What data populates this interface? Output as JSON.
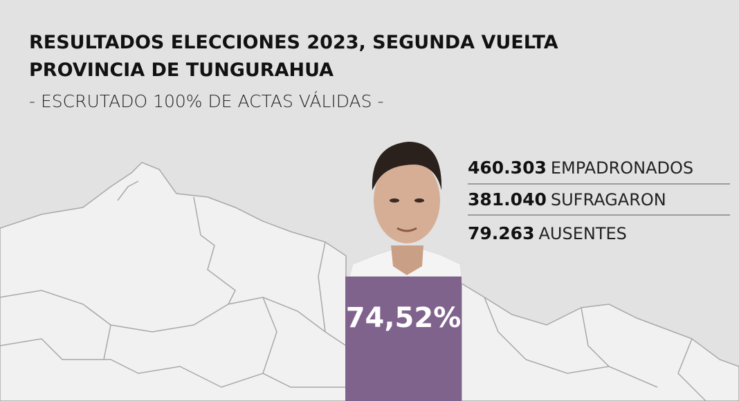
{
  "header": {
    "title_lines": [
      "RESULTADOS ELECCIONES 2023, SEGUNDA VUELTA",
      "PROVINCIA DE TUNGURAHUA"
    ],
    "subtitle": "- ESCRUTADO 100% DE ACTAS VÁLIDAS -"
  },
  "stats": [
    {
      "number": "460.303",
      "label": "EMPADRONADOS"
    },
    {
      "number": "381.040",
      "label": "SUFRAGARON"
    },
    {
      "number": "79.263",
      "label": "AUSENTES"
    }
  ],
  "result": {
    "value_label": "74,52%"
  }
}
